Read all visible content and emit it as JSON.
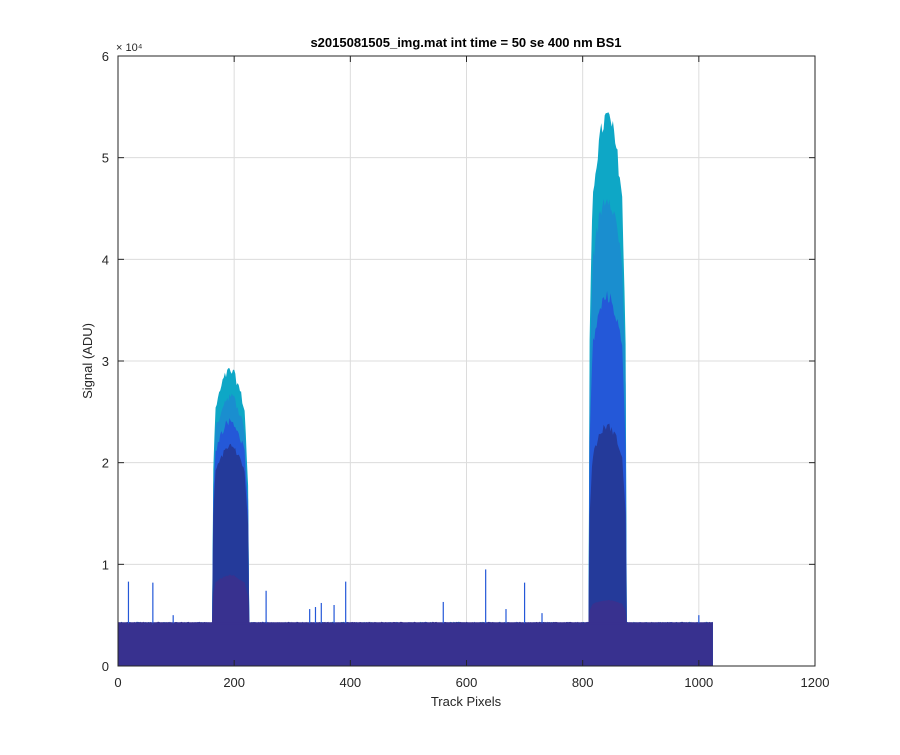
{
  "chart_data": {
    "type": "area",
    "title": "s2015081505_img.mat int time = 50 se  400 nm BS1",
    "xlabel": "Track Pixels",
    "ylabel": "Signal (ADU)",
    "xlim": [
      0,
      1200
    ],
    "ylim": [
      0,
      60000
    ],
    "xticks": [
      0,
      200,
      400,
      600,
      800,
      1000,
      1200
    ],
    "yticks": [
      0,
      1,
      2,
      3,
      4,
      5,
      6
    ],
    "yexponent_label": "× 10⁴",
    "grid": true,
    "legend": "none",
    "colors": [
      "#38318f",
      "#243a9a",
      "#2458d8",
      "#1a8ecf",
      "#0ea7c6"
    ],
    "baseline": 4200,
    "x_end": 1024,
    "peaks": [
      {
        "start": 163,
        "end": 224,
        "series_max": [
          9000,
          22000,
          24500,
          27000,
          29500
        ]
      },
      {
        "start": 812,
        "end": 874,
        "series_max": [
          6500,
          24000,
          37000,
          47000,
          55000
        ]
      }
    ],
    "spikes": [
      {
        "x": 18,
        "y": 8300
      },
      {
        "x": 60,
        "y": 8200
      },
      {
        "x": 95,
        "y": 5000
      },
      {
        "x": 255,
        "y": 7400
      },
      {
        "x": 330,
        "y": 5600
      },
      {
        "x": 340,
        "y": 5800
      },
      {
        "x": 350,
        "y": 6200
      },
      {
        "x": 372,
        "y": 6000
      },
      {
        "x": 392,
        "y": 8300
      },
      {
        "x": 560,
        "y": 6300
      },
      {
        "x": 633,
        "y": 9500
      },
      {
        "x": 668,
        "y": 5600
      },
      {
        "x": 700,
        "y": 8200
      },
      {
        "x": 730,
        "y": 5200
      },
      {
        "x": 1000,
        "y": 5000
      }
    ]
  }
}
